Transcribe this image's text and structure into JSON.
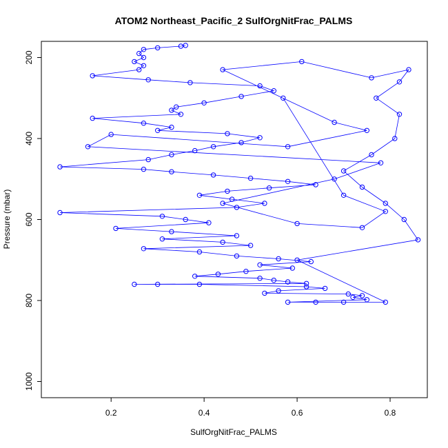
{
  "chart_data": {
    "type": "scatter",
    "title": "ATOM2 Northeast_Pacific_2 SulfOrgNitFrac_PALMS",
    "xlabel": "SulfOrgNitFrac_PALMS",
    "ylabel": "Pressure (mbar)",
    "xlim": [
      0.05,
      0.88
    ],
    "ylim": [
      1040,
      160
    ],
    "y_reversed": true,
    "x_ticks": [
      0.2,
      0.4,
      0.6,
      0.8
    ],
    "x_tick_labels": [
      "0.2",
      "0.4",
      "0.6",
      "0.8"
    ],
    "y_ticks": [
      200,
      400,
      600,
      800,
      1000
    ],
    "y_tick_labels": [
      "200",
      "400",
      "600",
      "800",
      "1000"
    ],
    "grid": false,
    "legend": "none",
    "marker": "open-circle",
    "color": "#0000ff",
    "series": [
      {
        "points": [
          [
            0.36,
            170
          ],
          [
            0.35,
            172
          ],
          [
            0.3,
            176
          ],
          [
            0.27,
            180
          ],
          [
            0.26,
            190
          ],
          [
            0.27,
            200
          ],
          [
            0.25,
            210
          ],
          [
            0.27,
            220
          ],
          [
            0.26,
            230
          ],
          [
            0.16,
            245
          ],
          [
            0.28,
            255
          ],
          [
            0.37,
            262
          ],
          [
            0.52,
            270
          ],
          [
            0.55,
            282
          ],
          [
            0.48,
            296
          ],
          [
            0.4,
            312
          ],
          [
            0.34,
            322
          ],
          [
            0.33,
            330
          ],
          [
            0.35,
            340
          ],
          [
            0.16,
            350
          ],
          [
            0.27,
            362
          ],
          [
            0.33,
            372
          ],
          [
            0.3,
            380
          ],
          [
            0.45,
            388
          ],
          [
            0.52,
            398
          ],
          [
            0.48,
            410
          ],
          [
            0.42,
            420
          ],
          [
            0.38,
            430
          ],
          [
            0.33,
            440
          ],
          [
            0.28,
            452
          ],
          [
            0.09,
            470
          ],
          [
            0.27,
            476
          ],
          [
            0.33,
            482
          ],
          [
            0.42,
            490
          ],
          [
            0.5,
            498
          ],
          [
            0.58,
            506
          ],
          [
            0.64,
            514
          ],
          [
            0.54,
            522
          ],
          [
            0.45,
            530
          ],
          [
            0.39,
            540
          ],
          [
            0.46,
            550
          ],
          [
            0.53,
            560
          ],
          [
            0.47,
            570
          ],
          [
            0.09,
            583
          ],
          [
            0.31,
            592
          ],
          [
            0.36,
            600
          ],
          [
            0.41,
            608
          ],
          [
            0.21,
            622
          ],
          [
            0.33,
            630
          ],
          [
            0.47,
            640
          ],
          [
            0.31,
            648
          ],
          [
            0.44,
            656
          ],
          [
            0.5,
            664
          ],
          [
            0.27,
            672
          ],
          [
            0.39,
            680
          ],
          [
            0.47,
            690
          ],
          [
            0.56,
            697
          ],
          [
            0.63,
            704
          ],
          [
            0.52,
            712
          ],
          [
            0.59,
            720
          ],
          [
            0.49,
            728
          ],
          [
            0.43,
            735
          ],
          [
            0.38,
            740
          ],
          [
            0.52,
            745
          ],
          [
            0.55,
            750
          ],
          [
            0.58,
            754
          ],
          [
            0.62,
            758
          ],
          [
            0.25,
            760
          ],
          [
            0.3,
            760
          ],
          [
            0.39,
            760
          ],
          [
            0.62,
            766
          ],
          [
            0.66,
            770
          ],
          [
            0.56,
            776
          ],
          [
            0.53,
            782
          ],
          [
            0.71,
            784
          ],
          [
            0.74,
            788
          ],
          [
            0.72,
            792
          ],
          [
            0.75,
            798
          ],
          [
            0.58,
            804
          ],
          [
            0.64,
            804
          ],
          [
            0.7,
            804
          ],
          [
            0.79,
            804
          ],
          [
            0.6,
            700
          ],
          [
            0.86,
            650
          ],
          [
            0.83,
            600
          ],
          [
            0.79,
            560
          ],
          [
            0.74,
            520
          ],
          [
            0.7,
            480
          ],
          [
            0.76,
            440
          ],
          [
            0.81,
            400
          ],
          [
            0.82,
            340
          ],
          [
            0.77,
            300
          ],
          [
            0.82,
            260
          ],
          [
            0.84,
            230
          ],
          [
            0.76,
            250
          ],
          [
            0.61,
            210
          ],
          [
            0.44,
            230
          ],
          [
            0.68,
            360
          ],
          [
            0.75,
            380
          ],
          [
            0.58,
            420
          ],
          [
            0.2,
            390
          ],
          [
            0.15,
            420
          ],
          [
            0.78,
            460
          ],
          [
            0.68,
            500
          ],
          [
            0.44,
            560
          ],
          [
            0.6,
            610
          ],
          [
            0.74,
            620
          ],
          [
            0.79,
            580
          ],
          [
            0.7,
            540
          ],
          [
            0.57,
            300
          ]
        ]
      }
    ]
  }
}
